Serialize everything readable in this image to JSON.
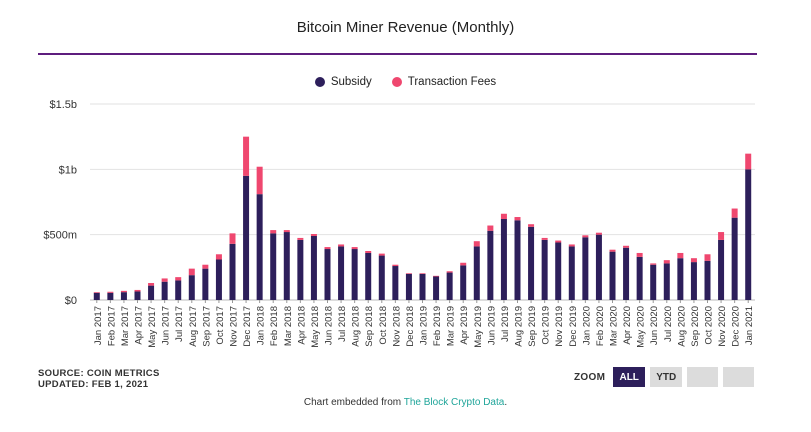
{
  "title": "Bitcoin Miner Revenue (Monthly)",
  "legend": {
    "subsidy": "Subsidy",
    "fees": "Transaction Fees"
  },
  "colors": {
    "subsidy": "#2d1f5b",
    "fees": "#ef476f",
    "rule": "#5e1d7e",
    "grid": "#e2e2e2",
    "link": "#1fa59a"
  },
  "source": {
    "line1": "SOURCE: COIN METRICS",
    "line2": "UPDATED: FEB 1, 2021"
  },
  "zoom": {
    "label": "ZOOM",
    "all": "ALL",
    "ytd": "YTD"
  },
  "embed": {
    "prefix": "Chart embedded from ",
    "link": "The Block Crypto Data",
    "suffix": "."
  },
  "chart_data": {
    "type": "bar",
    "stacked": true,
    "ylim": [
      0,
      1500
    ],
    "yticks": [
      0,
      500,
      1000,
      1500
    ],
    "ytick_labels": [
      "$0",
      "$500m",
      "$1b",
      "$1.5b"
    ],
    "grid": true,
    "legend_position": "top-center",
    "categories": [
      "Jan 2017",
      "Feb 2017",
      "Mar 2017",
      "Apr 2017",
      "May 2017",
      "Jun 2017",
      "Jul 2017",
      "Aug 2017",
      "Sep 2017",
      "Oct 2017",
      "Nov 2017",
      "Dec 2017",
      "Jan 2018",
      "Feb 2018",
      "Mar 2018",
      "Apr 2018",
      "May 2018",
      "Jun 2018",
      "Jul 2018",
      "Aug 2018",
      "Sep 2018",
      "Oct 2018",
      "Nov 2018",
      "Dec 2018",
      "Jan 2019",
      "Feb 2019",
      "Mar 2019",
      "Apr 2019",
      "May 2019",
      "Jun 2019",
      "Jul 2019",
      "Aug 2019",
      "Sep 2019",
      "Oct 2019",
      "Nov 2019",
      "Dec 2019",
      "Jan 2020",
      "Feb 2020",
      "Mar 2020",
      "Apr 2020",
      "May 2020",
      "Jun 2020",
      "Jul 2020",
      "Aug 2020",
      "Sep 2020",
      "Oct 2020",
      "Nov 2020",
      "Dec 2020",
      "Jan 2021"
    ],
    "series": [
      {
        "name": "Subsidy",
        "values": [
          55,
          55,
          60,
          65,
          110,
          140,
          150,
          190,
          240,
          310,
          430,
          950,
          810,
          510,
          520,
          460,
          490,
          390,
          410,
          390,
          360,
          340,
          260,
          200,
          200,
          180,
          210,
          265,
          410,
          530,
          620,
          610,
          560,
          460,
          440,
          410,
          480,
          500,
          370,
          400,
          330,
          270,
          280,
          320,
          290,
          300,
          460,
          630,
          1000
        ]
      },
      {
        "name": "Transaction Fees",
        "values": [
          5,
          8,
          10,
          12,
          20,
          25,
          25,
          50,
          30,
          40,
          80,
          300,
          210,
          25,
          15,
          15,
          15,
          15,
          15,
          15,
          15,
          15,
          10,
          5,
          5,
          5,
          10,
          20,
          40,
          40,
          40,
          25,
          20,
          15,
          15,
          15,
          15,
          15,
          15,
          15,
          30,
          10,
          25,
          40,
          30,
          50,
          60,
          70,
          120
        ]
      }
    ]
  }
}
